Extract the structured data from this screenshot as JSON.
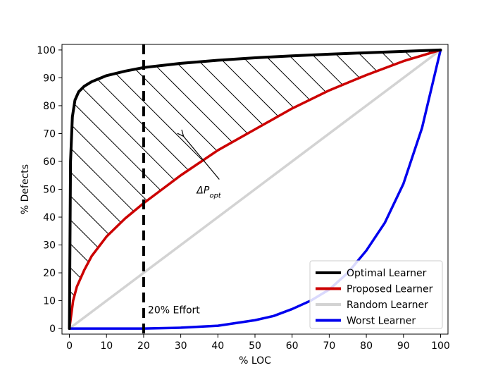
{
  "chart_data": {
    "type": "line",
    "title": "",
    "xlabel": "% LOC",
    "ylabel": "% Defects",
    "xlim": [
      0,
      100
    ],
    "ylim": [
      0,
      100
    ],
    "xticks": [
      0,
      10,
      20,
      30,
      40,
      50,
      60,
      70,
      80,
      90,
      100
    ],
    "yticks": [
      0,
      10,
      20,
      30,
      40,
      50,
      60,
      70,
      80,
      90,
      100
    ],
    "grid": false,
    "legend_position": "bottom-right",
    "series": [
      {
        "name": "Optimal Learner",
        "color": "#000000",
        "x": [
          0,
          0.3,
          0.8,
          1.5,
          2.5,
          4,
          6,
          10,
          15,
          20,
          30,
          40,
          50,
          60,
          70,
          80,
          90,
          100
        ],
        "y": [
          0,
          60,
          76,
          82,
          85,
          87,
          88.6,
          90.8,
          92.4,
          93.7,
          95.2,
          96.3,
          97.2,
          97.9,
          98.5,
          99.0,
          99.5,
          100
        ]
      },
      {
        "name": "Proposed Learner",
        "color": "#cc0000",
        "x": [
          0,
          1,
          2,
          4,
          6,
          10,
          15,
          20,
          25,
          30,
          40,
          50,
          60,
          70,
          80,
          90,
          100
        ],
        "y": [
          0,
          10,
          15,
          21,
          26,
          33,
          39.5,
          45,
          50,
          55,
          64,
          71.5,
          79,
          85.5,
          91,
          96,
          100
        ]
      },
      {
        "name": "Random Learner",
        "color": "#d3d3d3",
        "x": [
          0,
          100
        ],
        "y": [
          0,
          100
        ]
      },
      {
        "name": "Worst Learner",
        "color": "#0000ee",
        "x": [
          0,
          20,
          30,
          40,
          50,
          55,
          60,
          65,
          70,
          75,
          80,
          85,
          90,
          95,
          100
        ],
        "y": [
          0,
          0,
          0.3,
          1,
          3,
          4.5,
          7,
          10,
          14,
          20,
          28,
          38,
          52,
          72,
          100
        ]
      }
    ],
    "vline": {
      "x": 20,
      "label": "20% Effort"
    },
    "annotation": {
      "label_base": "ΔP",
      "label_sub": "opt",
      "text_pos": [
        40,
        50
      ],
      "arrow_to": [
        30,
        70
      ]
    }
  }
}
